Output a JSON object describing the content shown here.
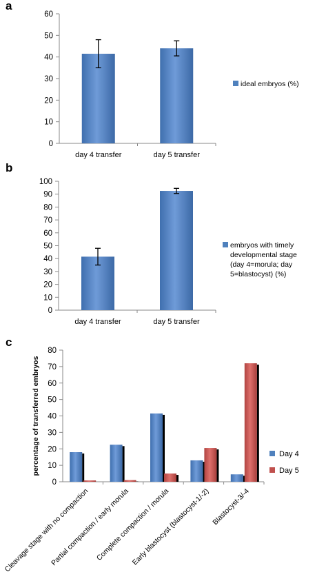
{
  "colors": {
    "blue": "#4f81bd",
    "blue_light": "#6e9ad6",
    "red": "#c0504d",
    "red_light": "#d96a66",
    "shadow": "#000000",
    "axis": "#8a8a8a"
  },
  "panels": [
    {
      "label": "a"
    },
    {
      "label": "b"
    },
    {
      "label": "c"
    }
  ],
  "chart_data": [
    {
      "panel": "a",
      "type": "bar",
      "categories": [
        "day 4 transfer",
        "day 5 transfer"
      ],
      "series": [
        {
          "name": "ideal embryos (%)",
          "values": [
            41.5,
            44
          ],
          "error": [
            6.5,
            3.5
          ]
        }
      ],
      "title": "",
      "xlabel": "",
      "ylabel": "",
      "ylim": [
        0,
        60
      ],
      "yticks": [
        "0",
        "10",
        "20",
        "30",
        "40",
        "50",
        "60"
      ],
      "legend_position": "right",
      "grid": false
    },
    {
      "panel": "b",
      "type": "bar",
      "categories": [
        "day 4 transfer",
        "day 5 transfer"
      ],
      "series": [
        {
          "name": "embryos with timely developmental stage (day 4=morula; day 5=blastocyst) (%)",
          "legend_lines": [
            "embryos with timely",
            "developmental stage",
            "(day 4=morula; day",
            "5=blastocyst) (%)"
          ],
          "values": [
            41.5,
            92.5
          ],
          "error": [
            6.5,
            2
          ]
        }
      ],
      "title": "",
      "xlabel": "",
      "ylabel": "",
      "ylim": [
        0,
        100
      ],
      "yticks": [
        "0",
        "10",
        "20",
        "30",
        "40",
        "50",
        "60",
        "70",
        "80",
        "90",
        "100"
      ],
      "legend_position": "right",
      "grid": false
    },
    {
      "panel": "c",
      "type": "bar",
      "categories": [
        "Cleavage stage with no compaction",
        "Partial compaction / early morula",
        "Complete compaction / morula",
        "Early blastocyst (blastocyst-1/-2)",
        "Blastocyst-3/-4"
      ],
      "series": [
        {
          "name": "Day 4",
          "values": [
            18,
            22.5,
            41.5,
            13,
            4.5
          ]
        },
        {
          "name": "Day 5",
          "values": [
            0.8,
            1,
            5,
            20.5,
            72
          ]
        }
      ],
      "title": "",
      "xlabel": "",
      "ylabel": "percentage of transferred embryos",
      "ylim": [
        0,
        80
      ],
      "yticks": [
        "0",
        "10",
        "20",
        "30",
        "40",
        "50",
        "60",
        "70",
        "80"
      ],
      "legend_position": "right",
      "grid": false
    }
  ]
}
